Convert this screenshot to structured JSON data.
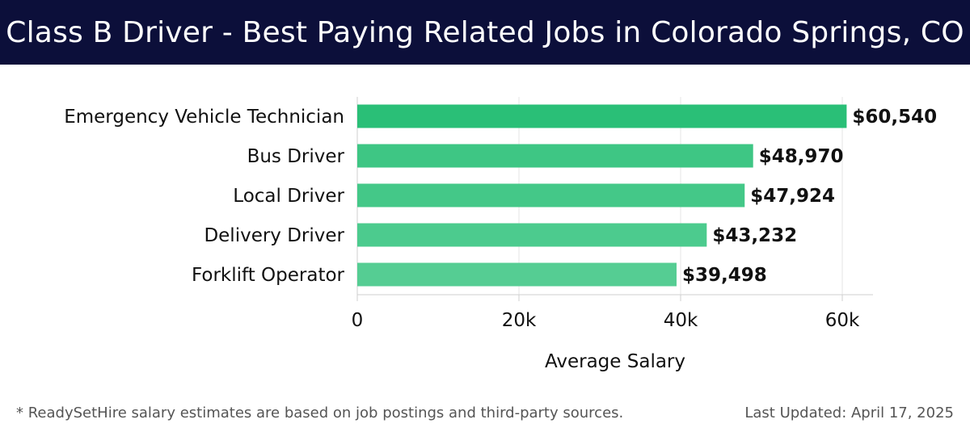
{
  "header": {
    "title": "Class B Driver - Best Paying Related Jobs in Colorado Springs, CO"
  },
  "chart_data": {
    "type": "bar",
    "orientation": "horizontal",
    "categories": [
      "Emergency Vehicle Technician",
      "Bus Driver",
      "Local Driver",
      "Delivery Driver",
      "Forklift Operator"
    ],
    "values": [
      60540,
      48970,
      47924,
      43232,
      39498
    ],
    "value_labels": [
      "$60,540",
      "$48,970",
      "$47,924",
      "$43,232",
      "$39,498"
    ],
    "xlabel": "Average Salary",
    "ylabel": "",
    "xlim": [
      0,
      63800
    ],
    "xticks": [
      0,
      20000,
      40000,
      60000
    ],
    "xtick_labels": [
      "0",
      "20k",
      "40k",
      "60k"
    ],
    "grid": true,
    "colors": [
      "#2abf77",
      "#3ec684",
      "#44c888",
      "#4ccb8e",
      "#55cd93"
    ]
  },
  "footer": {
    "note": "* ReadySetHire salary estimates are based on job postings and third-party sources.",
    "updated": "Last Updated: April 17, 2025"
  }
}
